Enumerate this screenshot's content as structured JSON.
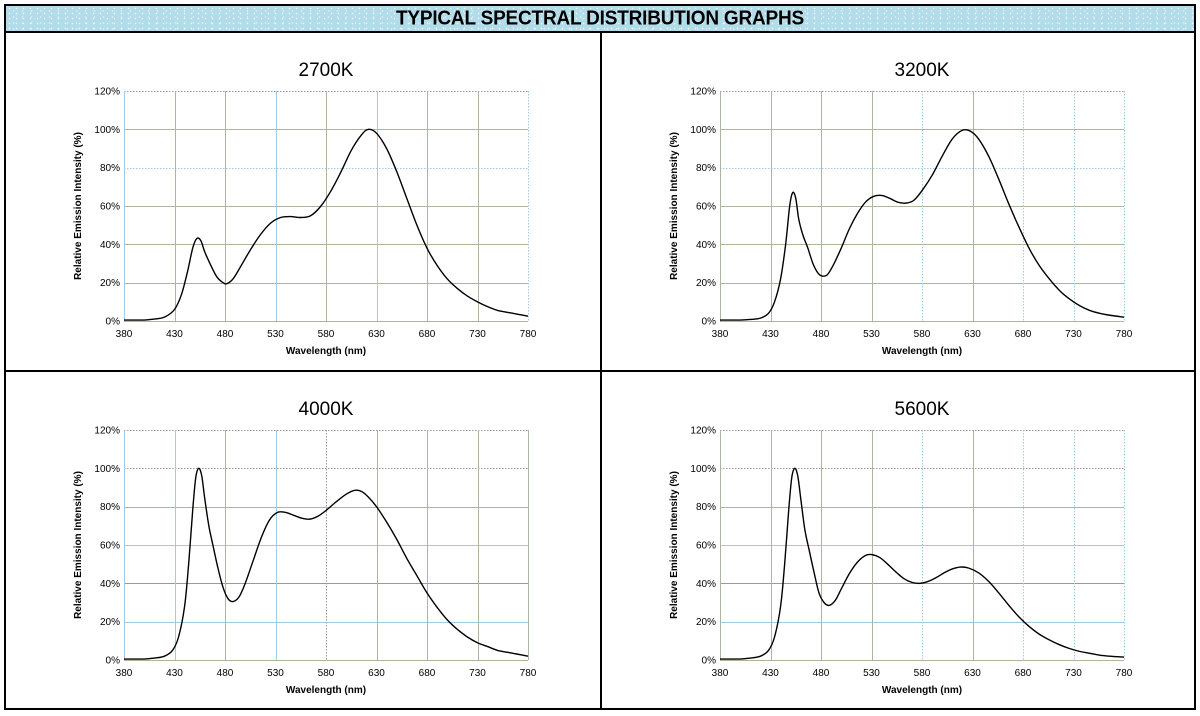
{
  "page": {
    "title": "TYPICAL SPECTRAL DISTRIBUTION GRAPHS"
  },
  "colors": {
    "header_bg": "#b3dcea",
    "grid_olive": "#a9b89c",
    "grid_blue": "#9fcbe0",
    "curve": "#000000",
    "border": "#000000"
  },
  "chart_data": [
    {
      "type": "line",
      "title": "2700K",
      "xlabel": "Wavelength (nm)",
      "ylabel": "Relative Emission Intensity (%)",
      "xlim": [
        380,
        780
      ],
      "ylim": [
        0,
        120
      ],
      "xticks": [
        "380",
        "430",
        "480",
        "530",
        "580",
        "630",
        "680",
        "730",
        "780"
      ],
      "yticks": [
        "0%",
        "20%",
        "40%",
        "60%",
        "80%",
        "100%",
        "120%"
      ],
      "grid": true,
      "legend": "none",
      "series": [
        {
          "name": "2700K",
          "x": [
            380,
            400,
            410,
            420,
            430,
            437,
            443,
            448,
            452,
            456,
            460,
            466,
            472,
            478,
            482,
            488,
            495,
            505,
            515,
            525,
            535,
            545,
            555,
            565,
            575,
            585,
            595,
            605,
            615,
            622,
            630,
            640,
            650,
            660,
            670,
            680,
            690,
            700,
            710,
            720,
            730,
            740,
            750,
            760,
            770,
            780
          ],
          "y": [
            0.5,
            0.5,
            1,
            2,
            6,
            14,
            26,
            38,
            43,
            42,
            36,
            29,
            23,
            20,
            19.5,
            22,
            28,
            37,
            45,
            51,
            54,
            54.5,
            54,
            55,
            60,
            68,
            78,
            89,
            97,
            100,
            98,
            90,
            78,
            64,
            50,
            38,
            29,
            22,
            17,
            13,
            10,
            7.5,
            5.5,
            4.5,
            3.5,
            2.5
          ]
        }
      ]
    },
    {
      "type": "line",
      "title": "3200K",
      "xlabel": "Wavelength (nm)",
      "ylabel": "Relative Emission Intensity (%)",
      "xlim": [
        380,
        780
      ],
      "ylim": [
        0,
        120
      ],
      "xticks": [
        "380",
        "430",
        "480",
        "530",
        "580",
        "630",
        "680",
        "730",
        "780"
      ],
      "yticks": [
        "0%",
        "20%",
        "40%",
        "60%",
        "80%",
        "100%",
        "120%"
      ],
      "grid": true,
      "legend": "none",
      "series": [
        {
          "name": "3200K",
          "x": [
            380,
            400,
            410,
            420,
            428,
            434,
            440,
            445,
            449,
            452,
            455,
            458,
            462,
            467,
            472,
            477,
            481,
            486,
            492,
            500,
            508,
            516,
            524,
            532,
            540,
            548,
            556,
            564,
            572,
            580,
            590,
            600,
            610,
            620,
            628,
            636,
            646,
            656,
            666,
            676,
            686,
            696,
            706,
            716,
            726,
            736,
            746,
            756,
            766,
            780
          ],
          "y": [
            0.5,
            0.5,
            0.8,
            1.5,
            4,
            10,
            22,
            40,
            60,
            67,
            64,
            53,
            45,
            38,
            30,
            25,
            23.5,
            24,
            29,
            38,
            48,
            56,
            62,
            65,
            65.5,
            64,
            62,
            61.5,
            63,
            68,
            76,
            86,
            95,
            99.5,
            99,
            95,
            86,
            74,
            61,
            49,
            38,
            29,
            22,
            16,
            11.5,
            8,
            5.5,
            4,
            3,
            2
          ]
        }
      ]
    },
    {
      "type": "line",
      "title": "4000K",
      "xlabel": "Wavelength (nm)",
      "ylabel": "Relative Emission Intensity (%)",
      "xlim": [
        380,
        780
      ],
      "ylim": [
        0,
        120
      ],
      "xticks": [
        "380",
        "430",
        "480",
        "530",
        "580",
        "630",
        "680",
        "730",
        "780"
      ],
      "yticks": [
        "0%",
        "20%",
        "40%",
        "60%",
        "80%",
        "100%",
        "120%"
      ],
      "grid": true,
      "legend": "none",
      "series": [
        {
          "name": "4000K",
          "x": [
            380,
            400,
            410,
            420,
            428,
            434,
            440,
            444,
            448,
            451,
            454,
            457,
            460,
            464,
            468,
            473,
            478,
            483,
            488,
            494,
            500,
            508,
            516,
            524,
            532,
            540,
            548,
            556,
            564,
            572,
            580,
            590,
            600,
            608,
            615,
            622,
            630,
            640,
            650,
            660,
            670,
            680,
            690,
            700,
            710,
            720,
            730,
            740,
            750,
            760,
            770,
            780
          ],
          "y": [
            0.5,
            0.5,
            1,
            2,
            5,
            12,
            28,
            50,
            78,
            95,
            100,
            96,
            84,
            70,
            60,
            48,
            38,
            32,
            30.5,
            33,
            40,
            52,
            64,
            73,
            77,
            77,
            75.5,
            74,
            73.5,
            75,
            78,
            82.5,
            86.5,
            88.5,
            88,
            85,
            80,
            72,
            63,
            53,
            44,
            35,
            27.5,
            21,
            16,
            12,
            9,
            7,
            5,
            4,
            3,
            2
          ]
        }
      ]
    },
    {
      "type": "line",
      "title": "5600K",
      "xlabel": "Wavelength (nm)",
      "ylabel": "Relative Emission Intensity (%)",
      "xlim": [
        380,
        780
      ],
      "ylim": [
        0,
        120
      ],
      "xticks": [
        "380",
        "430",
        "480",
        "530",
        "580",
        "630",
        "680",
        "730",
        "780"
      ],
      "yticks": [
        "0%",
        "20%",
        "40%",
        "60%",
        "80%",
        "100%",
        "120%"
      ],
      "grid": true,
      "legend": "none",
      "series": [
        {
          "name": "5600K",
          "x": [
            380,
            400,
            410,
            420,
            428,
            434,
            440,
            444,
            448,
            451,
            454,
            457,
            460,
            464,
            468,
            473,
            478,
            483,
            488,
            494,
            500,
            508,
            516,
            524,
            530,
            538,
            546,
            554,
            562,
            570,
            578,
            586,
            594,
            602,
            610,
            618,
            626,
            636,
            646,
            656,
            666,
            676,
            686,
            696,
            706,
            716,
            726,
            736,
            746,
            756,
            766,
            780
          ],
          "y": [
            0.5,
            0.5,
            1,
            2,
            5,
            12,
            28,
            50,
            78,
            95,
            100,
            96,
            84,
            68,
            58,
            46,
            35,
            30,
            28.5,
            31,
            37,
            45,
            51,
            54.5,
            55,
            53.5,
            50,
            46,
            42.5,
            40.5,
            40,
            41,
            43,
            45.5,
            47.5,
            48.5,
            48,
            45.5,
            41,
            35,
            28.5,
            22.5,
            17.5,
            13.5,
            10.5,
            8,
            6,
            4.5,
            3.5,
            2.5,
            2,
            1.5
          ]
        }
      ]
    }
  ]
}
